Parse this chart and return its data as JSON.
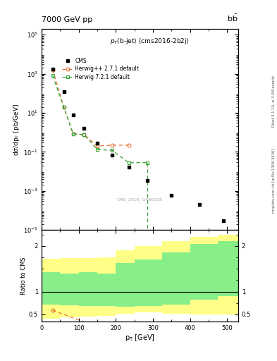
{
  "title_top": "7000 GeV pp",
  "title_right": "b$\\bar{b}$",
  "plot_title": "$p_T$(b-jet) (cms2016-2b2j)",
  "watermark": "CMS_2016_I1486238",
  "right_label1": "Rivet 3.1.10, ≥ 3.3M events",
  "right_label2": "mcplots.cern.ch [arXiv:1306.3436]",
  "cms_x": [
    30,
    60,
    85,
    115,
    150,
    190,
    235,
    285,
    350,
    425,
    490
  ],
  "cms_y": [
    1800,
    120,
    7.5,
    1.6,
    0.28,
    0.07,
    0.016,
    0.0035,
    0.0006,
    0.0002,
    3e-05
  ],
  "hpp_x": [
    30,
    60,
    85,
    115,
    150,
    190,
    235
  ],
  "hpp_y": [
    1600,
    19,
    0.85,
    0.75,
    0.2,
    0.22,
    0.22
  ],
  "hpp_color": "#e07030",
  "h721_x": [
    30,
    60,
    85,
    115,
    150,
    190,
    235,
    285
  ],
  "h721_y": [
    800,
    19,
    0.85,
    0.75,
    0.13,
    0.12,
    0.028,
    0.028
  ],
  "h721_color": "#30a030",
  "ratio_edges": [
    0,
    50,
    100,
    150,
    200,
    250,
    325,
    400,
    475,
    530
  ],
  "green_band_lo": [
    0.72,
    0.7,
    0.68,
    0.68,
    0.67,
    0.68,
    0.72,
    0.82,
    0.9
  ],
  "green_band_hi": [
    1.42,
    1.4,
    1.42,
    1.4,
    1.62,
    1.7,
    1.85,
    2.05,
    2.1
  ],
  "yellow_band_lo": [
    0.4,
    0.43,
    0.45,
    0.47,
    0.52,
    0.55,
    0.52,
    0.5,
    0.5
  ],
  "yellow_band_hi": [
    1.72,
    1.73,
    1.74,
    1.75,
    1.9,
    2.0,
    2.1,
    2.2,
    2.25
  ],
  "hpp_ratio_x": [
    30
  ],
  "hpp_ratio_y": [
    0.59
  ],
  "xlim": [
    0,
    530
  ],
  "ylim_main": [
    1e-05,
    200000.0
  ],
  "ylim_ratio": [
    0.35,
    2.35
  ],
  "yticks_ratio": [
    0.5,
    1.0,
    2.0
  ],
  "ytick_labels_ratio": [
    "0.5",
    "1",
    "2"
  ]
}
